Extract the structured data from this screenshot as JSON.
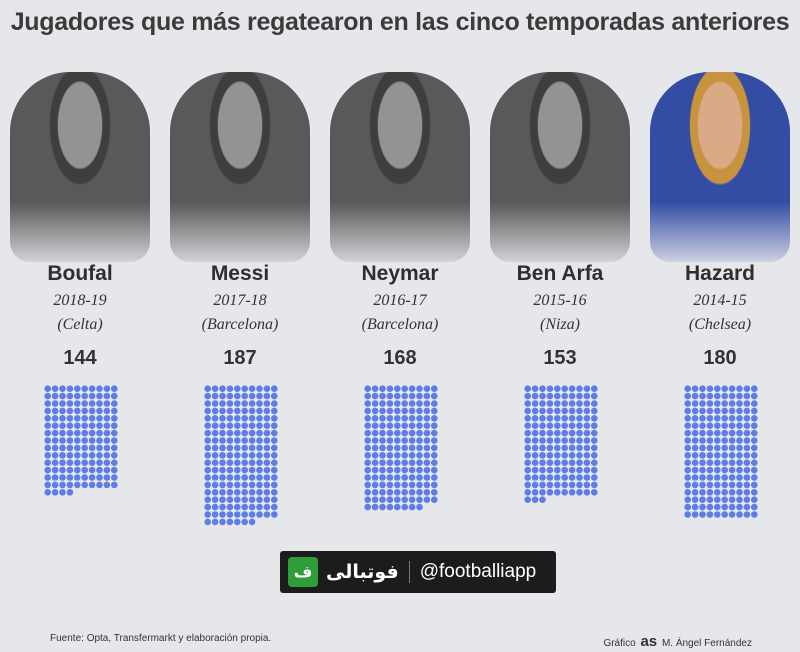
{
  "title": "Jugadores que más regatearon en las cinco temporadas anteriores",
  "colors": {
    "dot": "#5f7de6",
    "background": "#e6e7eb",
    "text": "#2e2e2e"
  },
  "chart_data": {
    "type": "bar",
    "title": "Jugadores que más regatearon en las cinco temporadas anteriores",
    "categories": [
      "Boufal",
      "Messi",
      "Neymar",
      "Ben Arfa",
      "Hazard"
    ],
    "values": [
      144,
      187,
      168,
      153,
      180
    ],
    "seasons": [
      "2018-19",
      "2017-18",
      "2016-17",
      "2015-16",
      "2014-15"
    ],
    "clubs": [
      "(Celta)",
      "(Barcelona)",
      "(Barcelona)",
      "(Niza)",
      "(Chelsea)"
    ],
    "value_labels": [
      "144",
      "187",
      "168",
      "153",
      "180"
    ],
    "grid": false,
    "dots_per_row": 10
  },
  "watermark": {
    "arabic": "فوتبالی",
    "handle": "@footballiapp",
    "logo": "ف"
  },
  "footer": {
    "source": "Fuente: Opta, Transfermarkt y elaboración propia.",
    "credit_prefix": "Gráfico",
    "credit_brand": "as",
    "credit_author": "M. Ángel Fernández"
  }
}
